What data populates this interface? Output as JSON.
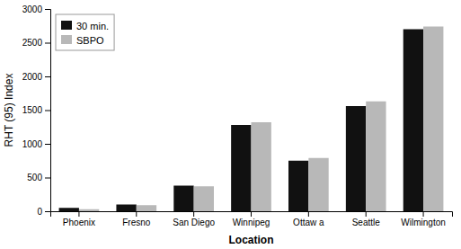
{
  "chart_data": {
    "type": "bar",
    "categories": [
      "Phoenix",
      "Fresno",
      "San Diego",
      "Winnipeg",
      "Ottaw a",
      "Seattle",
      "Wilmington"
    ],
    "series": [
      {
        "name": "30 min.",
        "color": "#111111",
        "values": [
          50,
          100,
          380,
          1280,
          750,
          1560,
          2700
        ]
      },
      {
        "name": "SBPO",
        "color": "#b8b8b8",
        "values": [
          30,
          90,
          370,
          1320,
          790,
          1630,
          2740
        ]
      }
    ],
    "xlabel": "Location",
    "ylabel": "RHT (95) Index",
    "ylim": [
      0,
      3000
    ],
    "yticks": [
      0,
      500,
      1000,
      1500,
      2000,
      2500,
      3000
    ],
    "legend": "upper left",
    "grid": false
  }
}
